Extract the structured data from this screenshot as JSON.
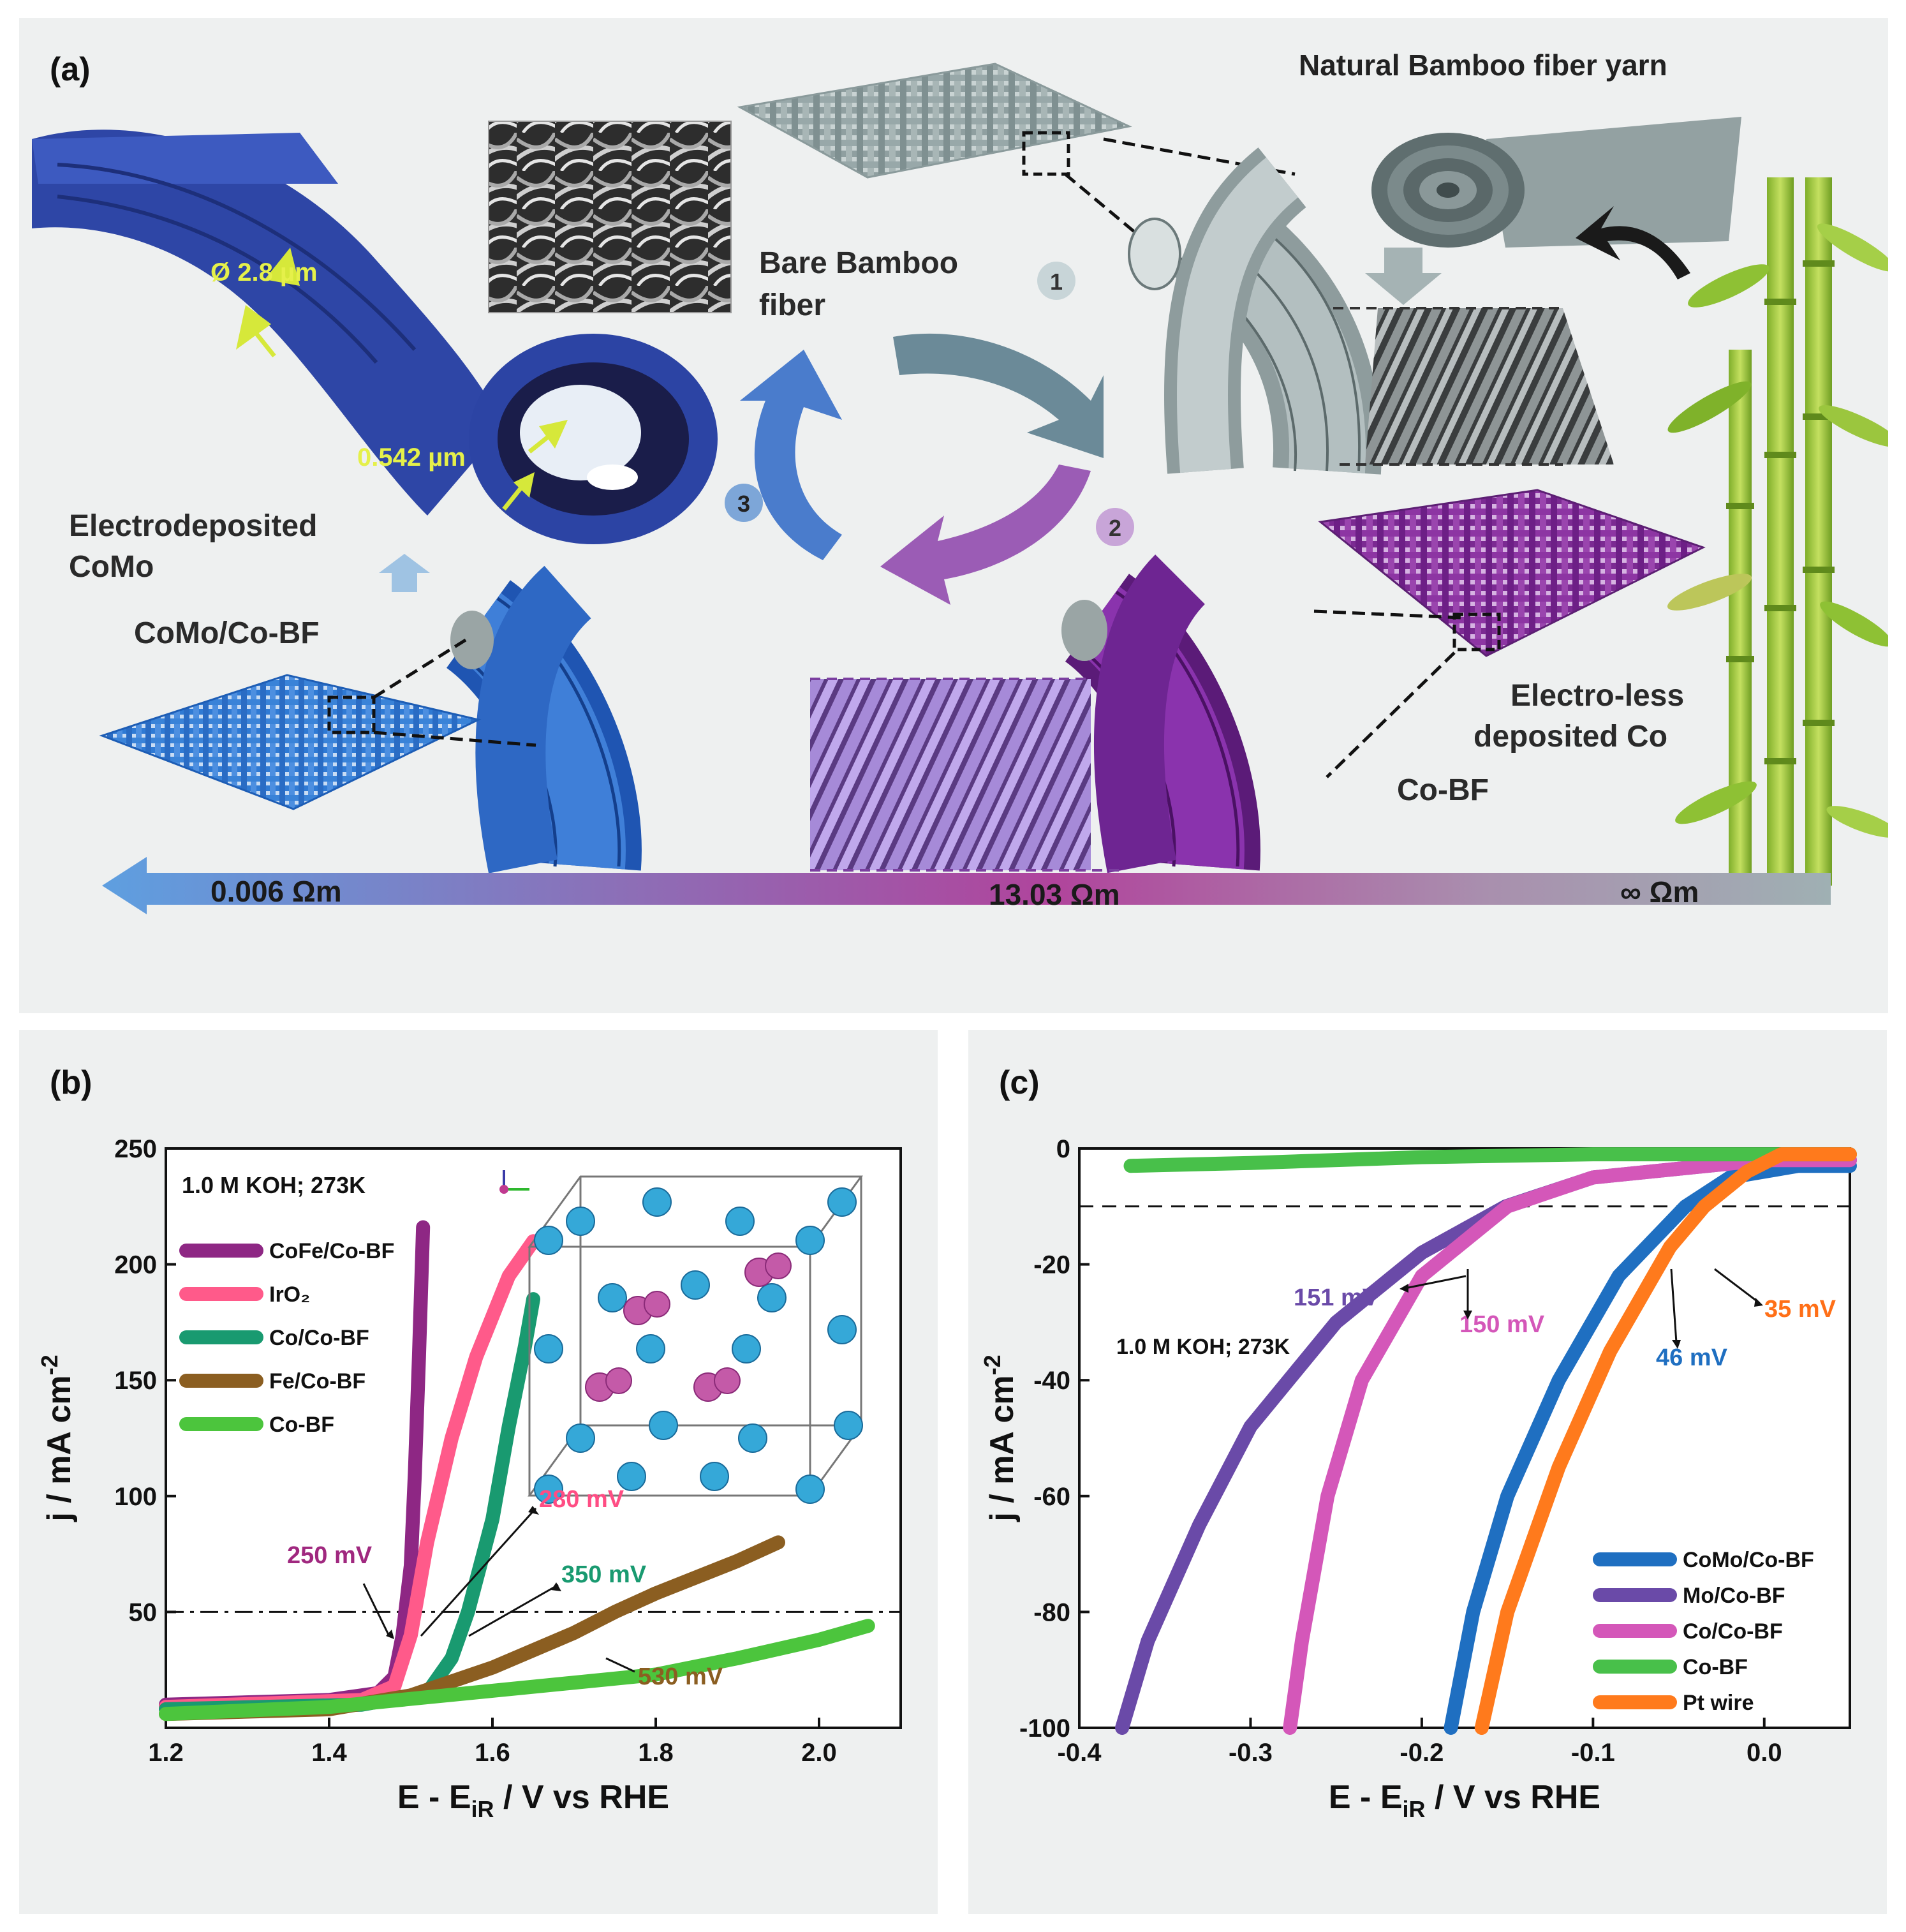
{
  "panel_a": {
    "tag": "(a)",
    "bamboo_yarn": "Natural Bamboo fiber yarn",
    "bare_line1": "Bare Bamboo",
    "bare_line2": "fiber",
    "diameter": "Ø 2.8 µm",
    "thickness": "0.542 µm",
    "electro_line1": "Electrodeposited",
    "electro_line2": "CoMo",
    "como_cobf": "CoMo/Co-BF",
    "eless_line1": "Electro-less",
    "eless_line2": "deposited Co",
    "cobf": "Co-BF",
    "step1": "1",
    "step2": "2",
    "step3": "3",
    "resist_left": "0.006 Ωm",
    "resist_mid": "13.03 Ωm",
    "resist_right": "∞ Ωm",
    "colors": {
      "gray": "#93a3a4",
      "purple": "#7d2d96",
      "blue": "#3f73d0",
      "navy": "#2f4aa8",
      "bamboo": "#9cc93a"
    }
  },
  "panel_b": {
    "tag": "(b)",
    "condition": "1.0 M KOH; 273K",
    "annotations": [
      "250 mV",
      "280 mV",
      "350 mV",
      "530 mV"
    ],
    "chart_data": {
      "type": "line",
      "xlabel": "E - E",
      "xlabel_sub": "iR",
      "xlabel_tail": " / V vs RHE",
      "ylabel": "j / mA cm",
      "ylabel_sup": "-2",
      "xlim": [
        1.2,
        2.1
      ],
      "ylim": [
        0,
        250
      ],
      "xticks": [
        "1.2",
        "1.4",
        "1.6",
        "1.8",
        "2.0"
      ],
      "yticks": [
        "50",
        "100",
        "150",
        "200",
        "250"
      ],
      "reference_line": 50,
      "series": [
        {
          "name": "CoFe/Co-BF",
          "color": "#8e2784",
          "points": [
            [
              1.2,
              10
            ],
            [
              1.4,
              12
            ],
            [
              1.46,
              15
            ],
            [
              1.48,
              22
            ],
            [
              1.49,
              40
            ],
            [
              1.5,
              70
            ],
            [
              1.505,
              110
            ],
            [
              1.51,
              160
            ],
            [
              1.515,
              216
            ]
          ]
        },
        {
          "name": "IrO₂",
          "color": "#ff5a8a",
          "points": [
            [
              1.2,
              9
            ],
            [
              1.44,
              12
            ],
            [
              1.48,
              18
            ],
            [
              1.5,
              40
            ],
            [
              1.52,
              80
            ],
            [
              1.55,
              125
            ],
            [
              1.58,
              160
            ],
            [
              1.62,
              195
            ],
            [
              1.65,
              210
            ]
          ]
        },
        {
          "name": "Co/Co-BF",
          "color": "#199a70",
          "points": [
            [
              1.2,
              8
            ],
            [
              1.44,
              10
            ],
            [
              1.52,
              15
            ],
            [
              1.55,
              30
            ],
            [
              1.57,
              50
            ],
            [
              1.6,
              90
            ],
            [
              1.62,
              130
            ],
            [
              1.64,
              165
            ],
            [
              1.65,
              185
            ]
          ]
        },
        {
          "name": "Fe/Co-BF",
          "color": "#8b5e21",
          "points": [
            [
              1.2,
              6
            ],
            [
              1.4,
              8
            ],
            [
              1.5,
              14
            ],
            [
              1.6,
              26
            ],
            [
              1.7,
              41
            ],
            [
              1.75,
              50
            ],
            [
              1.8,
              58
            ],
            [
              1.9,
              72
            ],
            [
              1.95,
              80
            ]
          ]
        },
        {
          "name": "Co-BF",
          "color": "#4cc53d",
          "points": [
            [
              1.2,
              6
            ],
            [
              1.4,
              9
            ],
            [
              1.6,
              16
            ],
            [
              1.8,
              23
            ],
            [
              1.9,
              30
            ],
            [
              2.0,
              38
            ],
            [
              2.06,
              44
            ]
          ]
        }
      ]
    }
  },
  "panel_c": {
    "tag": "(c)",
    "condition": "1.0 M KOH; 273K",
    "annotations": [
      "151 mV",
      "150 mV",
      "46 mV",
      "35 mV"
    ],
    "chart_data": {
      "type": "line",
      "xlabel": "E - E",
      "xlabel_sub": "iR",
      "xlabel_tail": " / V vs RHE",
      "ylabel": "j / mA cm",
      "ylabel_sup": "-2",
      "xlim": [
        -0.4,
        0.05
      ],
      "ylim": [
        -100,
        0
      ],
      "xticks": [
        "-0.4",
        "-0.3",
        "-0.2",
        "-0.1",
        "0.0"
      ],
      "yticks": [
        "0",
        "-20",
        "-40",
        "-60",
        "-80",
        "-100"
      ],
      "reference_line": -10,
      "series": [
        {
          "name": "CoMo/Co-BF",
          "color": "#1f6fc1",
          "points": [
            [
              -0.183,
              -100
            ],
            [
              -0.17,
              -80
            ],
            [
              -0.15,
              -60
            ],
            [
              -0.12,
              -40
            ],
            [
              -0.085,
              -22
            ],
            [
              -0.046,
              -10
            ],
            [
              -0.02,
              -5
            ],
            [
              0.02,
              -3
            ],
            [
              0.05,
              -3
            ]
          ]
        },
        {
          "name": "Mo/Co-BF",
          "color": "#6a4aa8",
          "points": [
            [
              -0.375,
              -100
            ],
            [
              -0.36,
              -85
            ],
            [
              -0.33,
              -65
            ],
            [
              -0.3,
              -48
            ],
            [
              -0.25,
              -30
            ],
            [
              -0.2,
              -18
            ],
            [
              -0.151,
              -10
            ],
            [
              -0.1,
              -5
            ],
            [
              0.0,
              -2
            ],
            [
              0.05,
              -2
            ]
          ]
        },
        {
          "name": "Co/Co-BF",
          "color": "#d457b9",
          "points": [
            [
              -0.277,
              -100
            ],
            [
              -0.27,
              -85
            ],
            [
              -0.255,
              -60
            ],
            [
              -0.235,
              -40
            ],
            [
              -0.2,
              -22
            ],
            [
              -0.15,
              -10
            ],
            [
              -0.1,
              -5
            ],
            [
              0.0,
              -2
            ],
            [
              0.05,
              -2
            ]
          ]
        },
        {
          "name": "Co-BF",
          "color": "#48c04a",
          "points": [
            [
              -0.37,
              -3
            ],
            [
              -0.3,
              -2.5
            ],
            [
              -0.2,
              -1.5
            ],
            [
              -0.1,
              -1
            ],
            [
              0.05,
              -1
            ]
          ]
        },
        {
          "name": "Pt wire",
          "color": "#ff7a1c",
          "points": [
            [
              -0.165,
              -100
            ],
            [
              -0.15,
              -80
            ],
            [
              -0.12,
              -55
            ],
            [
              -0.09,
              -35
            ],
            [
              -0.055,
              -17
            ],
            [
              -0.035,
              -10
            ],
            [
              -0.01,
              -4
            ],
            [
              0.01,
              -1
            ],
            [
              0.05,
              -1
            ]
          ]
        }
      ]
    }
  }
}
